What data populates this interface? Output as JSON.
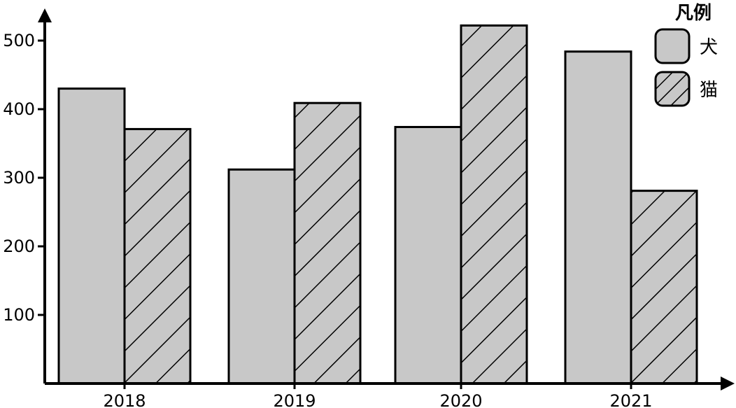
{
  "chart_data": {
    "type": "bar",
    "title": "",
    "xlabel": "",
    "ylabel": "",
    "categories": [
      "2018",
      "2019",
      "2020",
      "2021"
    ],
    "series": [
      {
        "name": "犬",
        "values": [
          430,
          312,
          374,
          484
        ],
        "fill": "#c8c8c8",
        "pattern": "solid"
      },
      {
        "name": "猫",
        "values": [
          371,
          409,
          522,
          281
        ],
        "fill": "#c8c8c8",
        "pattern": "diagonal-hatch"
      }
    ],
    "y_ticks": [
      100,
      200,
      300,
      400,
      500
    ],
    "ylim": [
      0,
      540
    ],
    "grid": false,
    "legend": {
      "title": "凡例",
      "placement": "top-right"
    },
    "colors": {
      "bar_fill": "#c8c8c8",
      "stroke": "#000000",
      "hatch": "#000000"
    }
  }
}
